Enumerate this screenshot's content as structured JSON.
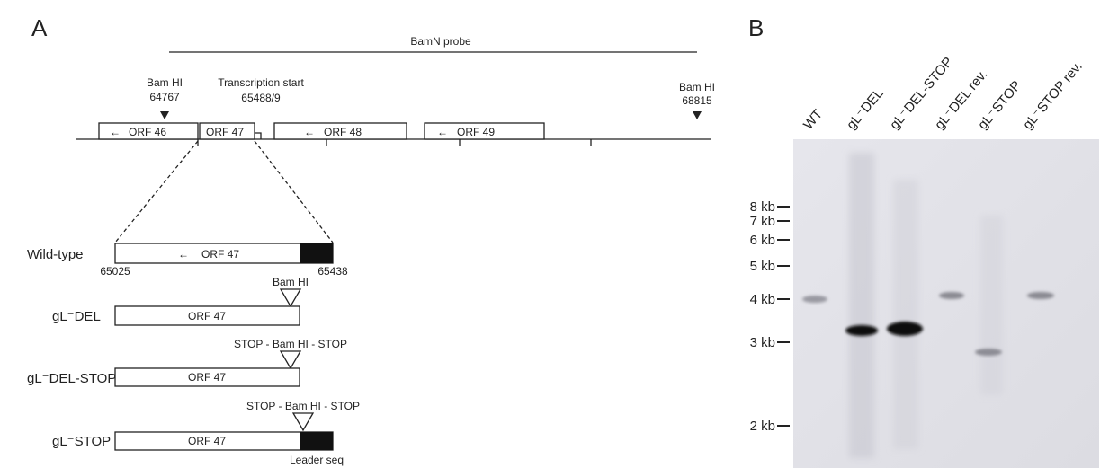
{
  "panel_a": {
    "label": "A",
    "probe": "BamN probe",
    "sites": [
      {
        "name": "Bam HI",
        "position": "64767"
      },
      {
        "name": "Transcription start",
        "position": "65488/9"
      },
      {
        "name": "Bam HI",
        "position": "68815"
      }
    ],
    "orfs": [
      "ORF 46",
      "ORF 47",
      "ORF 48",
      "ORF 49"
    ],
    "constructs": [
      {
        "name": "Wild-type",
        "orf": "ORF 47",
        "start": "65025",
        "end": "65438"
      },
      {
        "name": "gL⁻DEL",
        "orf": "ORF 47",
        "insert": "Bam HI"
      },
      {
        "name": "gL⁻DEL-STOP",
        "orf": "ORF 47",
        "insert": "STOP - Bam HI - STOP"
      },
      {
        "name": "gL⁻STOP",
        "orf": "ORF 47",
        "insert": "STOP - Bam HI - STOP",
        "leader": "Leader seq"
      }
    ]
  },
  "panel_b": {
    "label": "B",
    "lanes": [
      "WT",
      "gL⁻DEL",
      "gL⁻DEL-STOP",
      "gL⁻DEL rev.",
      "gL⁻STOP",
      "gL⁻STOP rev."
    ],
    "markers": [
      "8 kb",
      "7 kb",
      "6 kb",
      "5 kb",
      "4 kb",
      "3 kb",
      "2 kb"
    ]
  }
}
